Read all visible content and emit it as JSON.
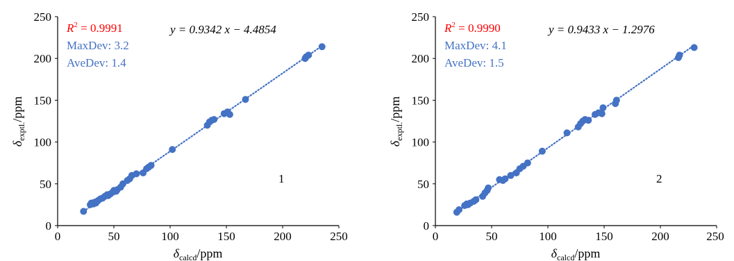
{
  "chart_data": [
    {
      "type": "scatter",
      "panel_label": "1",
      "xlabel": "δcalcd/ppm",
      "xlabel_parts": {
        "symbol": "δ",
        "sub": "calcd",
        "unit": "/ppm"
      },
      "ylabel": "δexptl./ppm",
      "ylabel_parts": {
        "symbol": "δ",
        "sub": "exptl.",
        "unit": "/ppm"
      },
      "xlim": [
        0,
        250
      ],
      "ylim": [
        0,
        250
      ],
      "xticks": [
        0,
        50,
        100,
        150,
        200,
        250
      ],
      "yticks": [
        0,
        50,
        100,
        150,
        200,
        250
      ],
      "grid": false,
      "trendline": {
        "style": "dotted",
        "slope": 0.9342,
        "intercept": -4.4854
      },
      "annotations": {
        "r2_symbol": "R",
        "r2_sup": "2",
        "r2_value": " = 0.9991",
        "maxdev": "MaxDev: 3.2",
        "avedev": "AveDev: 1.4",
        "equation": "y = 0.9342 x − 4.4854"
      },
      "colors": {
        "points": "#4472c4",
        "r2": "#ff0000",
        "stats": "#4472c4",
        "axis": "#000000"
      },
      "series": [
        {
          "x": [
            23,
            29,
            30,
            32,
            33,
            34,
            35,
            36,
            38,
            40,
            42,
            44,
            45,
            47,
            49,
            50,
            52,
            53,
            56,
            58,
            62,
            64,
            66,
            70,
            76,
            79,
            81,
            83,
            102,
            133,
            135,
            137,
            139,
            148,
            151,
            153,
            167,
            220,
            221,
            223,
            235
          ],
          "y": [
            17,
            25,
            27,
            26,
            28,
            27,
            29,
            30,
            32,
            33,
            35,
            37,
            36,
            38,
            40,
            42,
            41,
            43,
            46,
            50,
            54,
            56,
            60,
            62,
            63,
            68,
            70,
            72,
            91,
            120,
            124,
            126,
            127,
            134,
            136,
            133,
            151,
            200,
            202,
            204,
            214
          ]
        }
      ]
    },
    {
      "type": "scatter",
      "panel_label": "2",
      "xlabel": "δcalcd/ppm",
      "xlabel_parts": {
        "symbol": "δ",
        "sub": "calcd",
        "unit": "/ppm"
      },
      "ylabel": "δexptl./ppm",
      "ylabel_parts": {
        "symbol": "δ",
        "sub": "exptl.",
        "unit": "/ppm"
      },
      "xlim": [
        0,
        250
      ],
      "ylim": [
        0,
        250
      ],
      "xticks": [
        0,
        50,
        100,
        150,
        200,
        250
      ],
      "yticks": [
        0,
        50,
        100,
        150,
        200,
        250
      ],
      "grid": false,
      "trendline": {
        "style": "dotted",
        "slope": 0.9433,
        "intercept": -1.2976
      },
      "annotations": {
        "r2_symbol": "R",
        "r2_sup": "2",
        "r2_value": " = 0.9990",
        "maxdev": "MaxDev: 4.1",
        "avedev": "AveDev: 1.5",
        "equation": "y = 0.9433 x − 1.2976"
      },
      "colors": {
        "points": "#4472c4",
        "r2": "#ff0000",
        "stats": "#4472c4",
        "axis": "#000000"
      },
      "series": [
        {
          "x": [
            19,
            21,
            26,
            28,
            29,
            31,
            34,
            36,
            42,
            44,
            46,
            47,
            57,
            60,
            62,
            67,
            72,
            75,
            78,
            82,
            95,
            117,
            127,
            129,
            131,
            133,
            136,
            142,
            145,
            148,
            149,
            160,
            161,
            216,
            217,
            230
          ],
          "y": [
            16,
            19,
            24,
            26,
            25,
            27,
            29,
            31,
            35,
            39,
            42,
            45,
            55,
            54,
            56,
            60,
            63,
            68,
            71,
            75,
            89,
            111,
            118,
            122,
            125,
            127,
            126,
            133,
            135,
            134,
            141,
            146,
            150,
            201,
            204,
            213
          ]
        }
      ]
    }
  ]
}
